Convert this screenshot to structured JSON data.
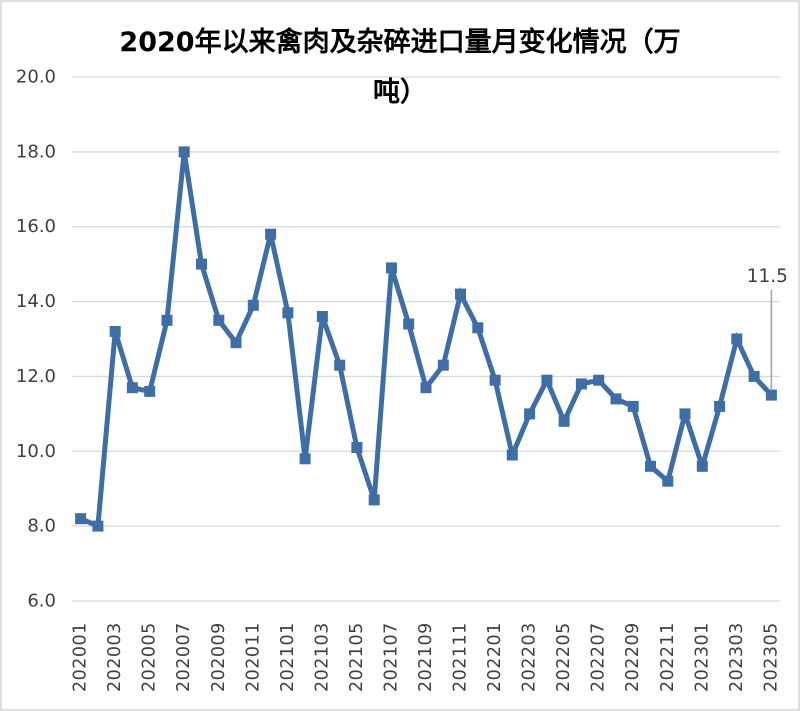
{
  "chart_data": {
    "type": "line",
    "title": "2020年以来禽肉及杂碎进口量月变化情况（万吨）",
    "title_lines": [
      "2020年以来禽肉及杂碎进口量月变化情况（万",
      "吨）"
    ],
    "xlabel": "",
    "ylabel": "",
    "x": [
      "202001",
      "202002",
      "202003",
      "202004",
      "202005",
      "202006",
      "202007",
      "202008",
      "202009",
      "202010",
      "202011",
      "202012",
      "202101",
      "202102",
      "202103",
      "202104",
      "202105",
      "202106",
      "202107",
      "202108",
      "202109",
      "202110",
      "202111",
      "202112",
      "202201",
      "202202",
      "202203",
      "202204",
      "202205",
      "202206",
      "202207",
      "202208",
      "202209",
      "202210",
      "202211",
      "202212",
      "202301",
      "202302",
      "202303",
      "202304",
      "202305"
    ],
    "series": [
      {
        "name": "禽肉及杂碎进口量",
        "values": [
          8.2,
          8.0,
          13.2,
          11.7,
          11.6,
          13.5,
          18.0,
          15.0,
          13.5,
          12.9,
          13.9,
          15.8,
          13.7,
          9.8,
          13.6,
          12.3,
          10.1,
          8.7,
          14.9,
          13.4,
          11.7,
          12.3,
          14.2,
          13.3,
          11.9,
          9.9,
          11.0,
          11.9,
          10.8,
          11.8,
          11.9,
          11.4,
          11.2,
          9.6,
          9.2,
          11.0,
          9.6,
          11.2,
          13.0,
          12.0,
          11.5
        ]
      }
    ],
    "ylim": [
      6.0,
      20.0
    ],
    "ytick_values": [
      20,
      18,
      16,
      14,
      12,
      10,
      8,
      6
    ],
    "ytick_labels": [
      "20.0",
      "18.0",
      "16.0",
      "14.0",
      "12.0",
      "10.0",
      "8.0",
      "6.0"
    ],
    "xtick_labels": [
      "202001",
      "202003",
      "202005",
      "202007",
      "202009",
      "202011",
      "202101",
      "202103",
      "202105",
      "202107",
      "202109",
      "202111",
      "202201",
      "202203",
      "202205",
      "202207",
      "202209",
      "202211",
      "202301",
      "202303",
      "202305"
    ],
    "grid": "horizontal",
    "legend": "none",
    "marker": "square",
    "annotation": {
      "text": "11.5",
      "x": "202305",
      "value": 11.5
    },
    "colors": {
      "line": "#3E6EA5",
      "marker": "#3E6EA5",
      "gridline": "#D9D9D9",
      "axis_text": "#3F3F3F",
      "title_text": "#000000",
      "annotation_text": "#404040",
      "leader_line": "#A6A6A6",
      "chart_border": "#D3D3D3",
      "background": "#FFFFFF"
    }
  }
}
